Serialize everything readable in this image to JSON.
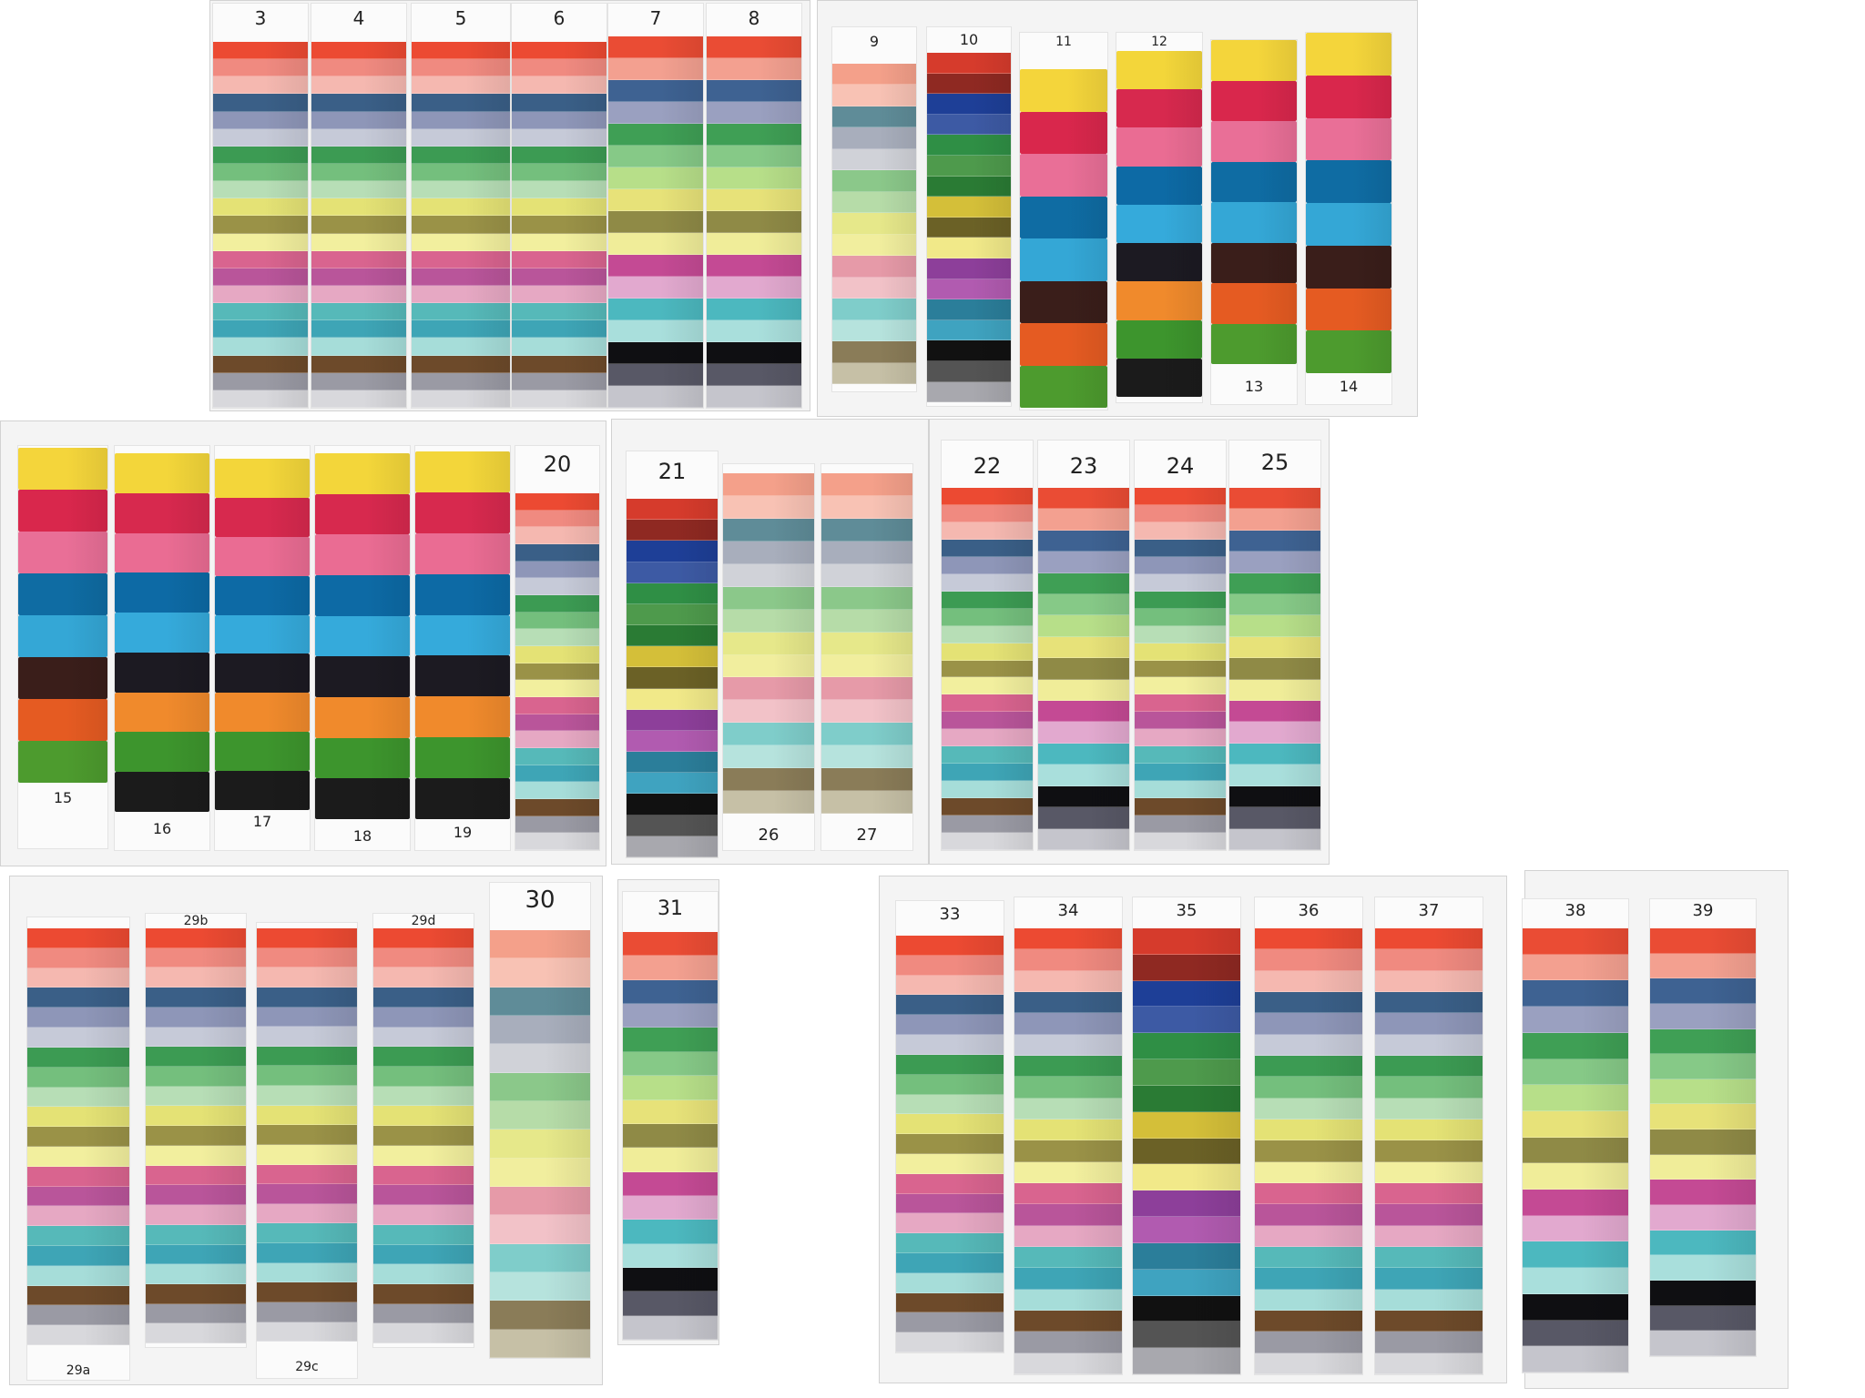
{
  "collage_title": "",
  "palettes": {
    "gradient_full": [
      "#ec4a32",
      "#f08a80",
      "#f5b8b0",
      "#3a5f87",
      "#8e96b8",
      "#c6cad8",
      "#3c9b53",
      "#74bf7d",
      "#b7deb6",
      "#e4e275",
      "#9a9247",
      "#f2ef9e",
      "#d9648f",
      "#b9559a",
      "#e6a8c3",
      "#56b9b9",
      "#3ea5b6",
      "#a6ddd9",
      "#6d4a2a",
      "#9a9aa4",
      "#d8d8dc"
    ],
    "gradient_pastel": [
      "#f4a08a",
      "#f8c2b4",
      "#5f8c98",
      "#a8aebc",
      "#d0d2d8",
      "#8bc88a",
      "#b6dca8",
      "#e6e88a",
      "#f1ee9e",
      "#e69aa8",
      "#f2c2c8",
      "#7fcdca",
      "#b6e3dd",
      "#8a7c58",
      "#c6c0a6"
    ],
    "gradient_dark": [
      "#d63b2c",
      "#8f2922",
      "#1e3f97",
      "#3d5aa4",
      "#2f8f45",
      "#4e9a4c",
      "#2a7b34",
      "#d4bf39",
      "#6b6126",
      "#f1e989",
      "#8d3f9a",
      "#b15bb0",
      "#2b7e9a",
      "#3fa3c0",
      "#111111",
      "#545454",
      "#a8a8ae"
    ],
    "marker_a": [
      "#f4d53b",
      "#d9274c",
      "#e96f97",
      "#0f6ca3",
      "#34a7d6",
      "#3a1e1a",
      "#e55b22",
      "#4d9b2e"
    ],
    "marker_b": [
      "#f3d63a",
      "#d7294e",
      "#ea6c93",
      "#0d6aa5",
      "#35aadb",
      "#1c1a22",
      "#f08a2c",
      "#3d952d",
      "#1b1b1b"
    ],
    "cool_gradient": [
      "#ea4c34",
      "#f3a090",
      "#3e6292",
      "#9aa0c0",
      "#3f9f55",
      "#86c987",
      "#b7df89",
      "#e7e279",
      "#8f8a46",
      "#f0ed99",
      "#c44a94",
      "#e2a9cf",
      "#4cb8bf",
      "#a9dfdc",
      "#0f0f12",
      "#585866",
      "#c5c5cc"
    ]
  },
  "boards": [
    {
      "id": "board-top-left",
      "strips": [
        {
          "label": "3",
          "palette": "gradient_full"
        },
        {
          "label": "4",
          "palette": "gradient_full"
        },
        {
          "label": "5",
          "palette": "gradient_full"
        },
        {
          "label": "6",
          "palette": "gradient_full"
        },
        {
          "label": "7",
          "palette": "cool_gradient"
        },
        {
          "label": "8",
          "palette": "cool_gradient"
        }
      ]
    },
    {
      "id": "board-top-right",
      "strips": [
        {
          "label": "9",
          "palette": "gradient_pastel"
        },
        {
          "label": "10",
          "palette": "gradient_dark"
        },
        {
          "label": "11",
          "palette": "marker_a"
        },
        {
          "label": "12",
          "palette": "marker_b"
        },
        {
          "label": "13",
          "palette": "marker_a"
        },
        {
          "label": "14",
          "palette": "marker_a"
        }
      ]
    },
    {
      "id": "board-middle-left",
      "strips": [
        {
          "label": "15",
          "palette": "marker_a"
        },
        {
          "label": "16",
          "palette": "marker_b"
        },
        {
          "label": "17",
          "palette": "marker_b"
        },
        {
          "label": "18",
          "palette": "marker_b"
        },
        {
          "label": "19",
          "palette": "marker_b"
        },
        {
          "label": "20",
          "palette": "gradient_full"
        }
      ]
    },
    {
      "id": "board-middle-center",
      "strips": [
        {
          "label": "21",
          "palette": "gradient_dark"
        },
        {
          "label": "26",
          "palette": "gradient_pastel"
        },
        {
          "label": "27",
          "palette": "gradient_pastel"
        }
      ]
    },
    {
      "id": "board-middle-right",
      "strips": [
        {
          "label": "22",
          "palette": "gradient_full"
        },
        {
          "label": "23",
          "palette": "cool_gradient"
        },
        {
          "label": "24",
          "palette": "gradient_full"
        },
        {
          "label": "25",
          "palette": "cool_gradient"
        }
      ]
    },
    {
      "id": "board-bottom-left",
      "strips": [
        {
          "label": "29a",
          "palette": "gradient_full"
        },
        {
          "label": "29b",
          "palette": "gradient_full"
        },
        {
          "label": "29c",
          "palette": "gradient_full"
        },
        {
          "label": "29d",
          "palette": "gradient_full"
        },
        {
          "label": "30",
          "palette": "gradient_pastel"
        }
      ]
    },
    {
      "id": "board-bottom-31",
      "strips": [
        {
          "label": "31",
          "palette": "cool_gradient"
        }
      ]
    },
    {
      "id": "board-bottom-right",
      "strips": [
        {
          "label": "33",
          "palette": "gradient_full"
        },
        {
          "label": "34",
          "palette": "gradient_full"
        },
        {
          "label": "35",
          "palette": "gradient_dark"
        },
        {
          "label": "36",
          "palette": "gradient_full"
        },
        {
          "label": "37",
          "palette": "gradient_full"
        }
      ]
    },
    {
      "id": "board-bottom-far-right",
      "strips": [
        {
          "label": "38",
          "palette": "cool_gradient"
        },
        {
          "label": "39",
          "palette": "cool_gradient"
        }
      ]
    }
  ]
}
